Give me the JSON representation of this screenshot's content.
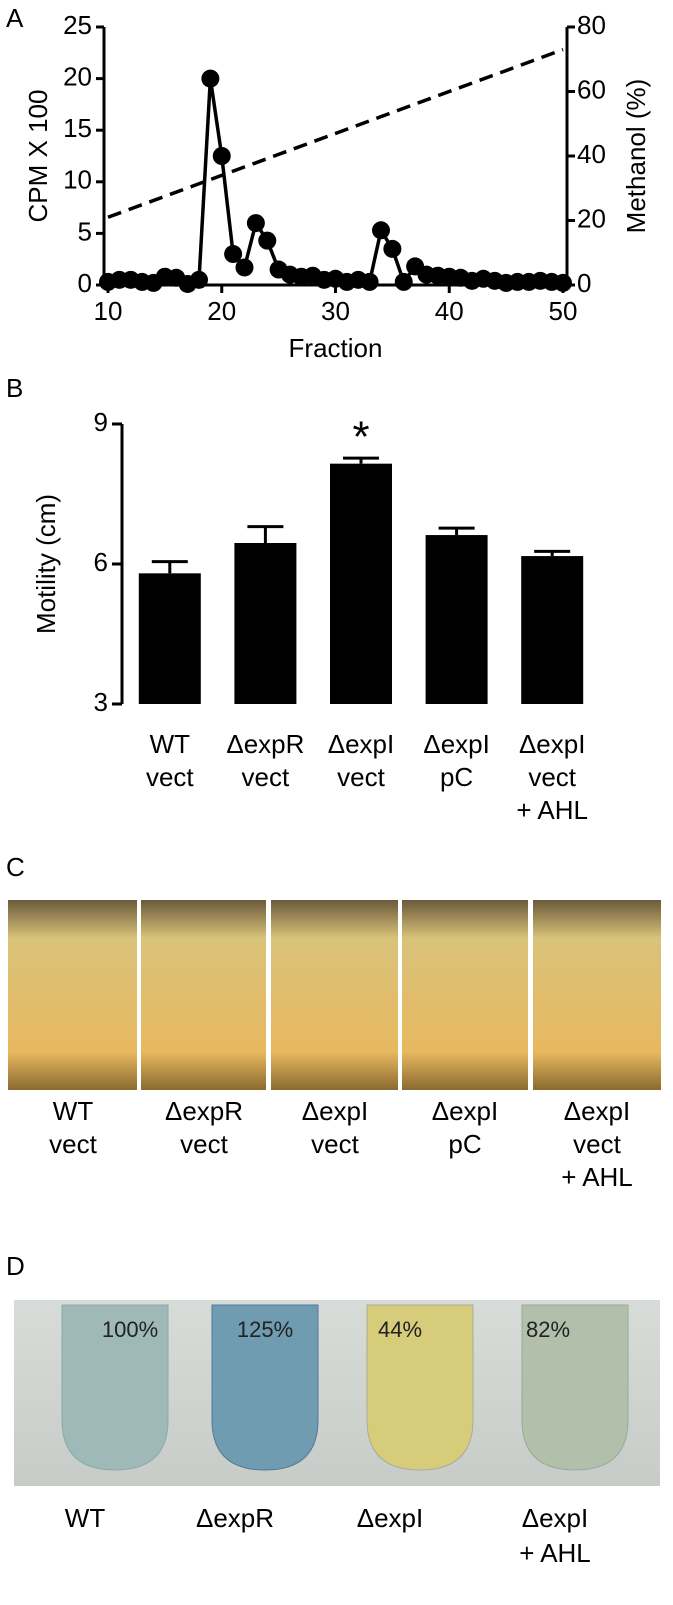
{
  "panel_labels": [
    "A",
    "B",
    "C",
    "D"
  ],
  "chart_data": [
    {
      "type": "line",
      "x_label": "Fraction",
      "y_label": "CPM X 100",
      "y2_label": "Methanol (%)",
      "xlim": [
        10,
        50
      ],
      "xticks": [
        10,
        20,
        30,
        40,
        50
      ],
      "ylim": [
        0,
        25
      ],
      "yticks": [
        0,
        5,
        10,
        15,
        20,
        25
      ],
      "y2lim": [
        0,
        80
      ],
      "y2ticks": [
        0,
        20,
        40,
        60,
        80
      ],
      "series": [
        {
          "name": "CPM",
          "color": "#000000",
          "style": "solid",
          "markers": true,
          "x": [
            10,
            11,
            12,
            13,
            14,
            15,
            16,
            17,
            18,
            19,
            20,
            21,
            22,
            23,
            24,
            25,
            26,
            27,
            28,
            29,
            30,
            31,
            32,
            33,
            34,
            35,
            36,
            37,
            38,
            39,
            40,
            41,
            42,
            43,
            44,
            45,
            46,
            47,
            48,
            49,
            50
          ],
          "values": [
            0.3,
            0.5,
            0.5,
            0.3,
            0.2,
            0.8,
            0.7,
            0.1,
            0.5,
            20,
            12.5,
            3,
            1.7,
            6,
            4.3,
            1.5,
            1,
            0.8,
            0.9,
            0.5,
            0.6,
            0.3,
            0.5,
            0.3,
            5.3,
            3.5,
            0.3,
            1.8,
            1,
            0.9,
            0.8,
            0.7,
            0.4,
            0.6,
            0.4,
            0.2,
            0.3,
            0.3,
            0.4,
            0.3,
            0.2
          ]
        },
        {
          "name": "Methanol",
          "color": "#000000",
          "style": "dashed",
          "markers": false,
          "axis": "y2",
          "x": [
            10,
            50
          ],
          "values": [
            21,
            73
          ]
        }
      ]
    },
    {
      "type": "bar",
      "y_label": "Motility (cm)",
      "color": "#000000",
      "categories": [
        [
          "WT",
          "vect"
        ],
        [
          "ΔexpR",
          "vect"
        ],
        [
          "ΔexpI",
          "vect"
        ],
        [
          "ΔexpI",
          "pC"
        ],
        [
          "ΔexpI",
          "vect",
          "+ AHL"
        ]
      ],
      "values": [
        5.8,
        6.45,
        8.15,
        6.62,
        6.17
      ],
      "errors": [
        0.25,
        0.35,
        0.12,
        0.15,
        0.1
      ],
      "ylim": [
        3,
        9
      ],
      "yticks": [
        3,
        6,
        9
      ],
      "annotation": "*"
    }
  ],
  "panel_c": {
    "labels": [
      [
        "WT",
        "vect"
      ],
      [
        "ΔexpR",
        "vect"
      ],
      [
        "ΔexpI",
        "vect"
      ],
      [
        "ΔexpI",
        "pC"
      ],
      [
        "ΔexpI",
        "vect",
        "+ AHL"
      ]
    ]
  },
  "panel_d": {
    "percent_labels": [
      "100%",
      "125%",
      "44%",
      "82%"
    ],
    "labels": [
      [
        "WT"
      ],
      [
        "ΔexpR"
      ],
      [
        "ΔexpI"
      ],
      [
        "ΔexpI",
        "+ AHL"
      ]
    ]
  }
}
